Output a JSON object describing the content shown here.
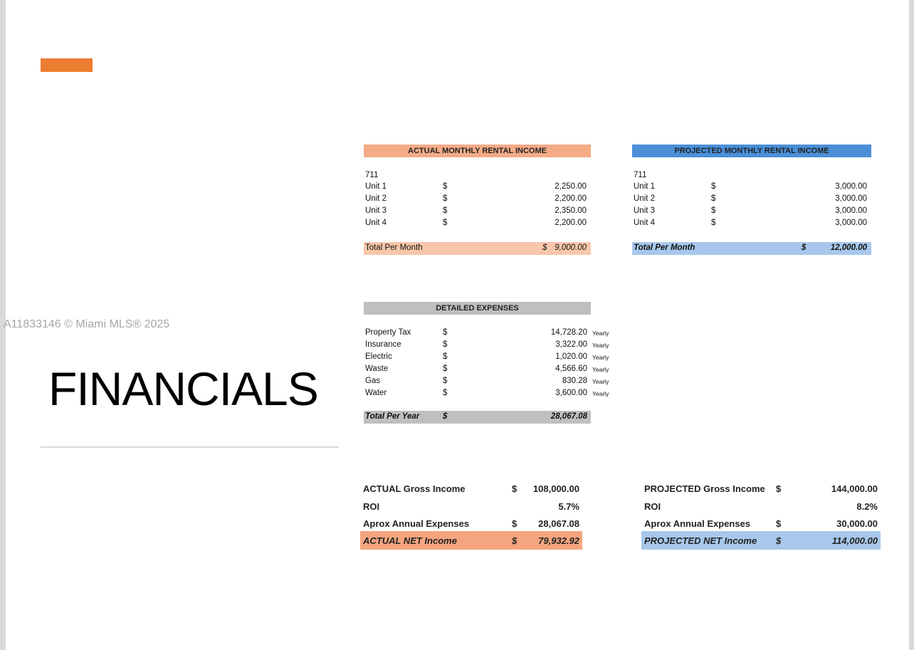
{
  "watermark": "A11833146 © Miami MLS® 2025",
  "title": "FINANCIALS",
  "colors": {
    "accent": "#ED7D31",
    "actual_header": "#F4AB86",
    "actual_total": "#F8C6AA",
    "projected_header": "#4A8FD8",
    "projected_total": "#A7C8EB",
    "expense_header": "#BFBFBF"
  },
  "actual": {
    "header": "ACTUAL MONTHLY RENTAL INCOME",
    "property": "711",
    "rows": [
      {
        "label": "Unit 1",
        "cur": "$",
        "value": "2,250.00"
      },
      {
        "label": "Unit 2",
        "cur": "$",
        "value": "2,200.00"
      },
      {
        "label": "Unit 3",
        "cur": "$",
        "value": "2,350.00"
      },
      {
        "label": "Unit 4",
        "cur": "$",
        "value": "2,200.00"
      }
    ],
    "total": {
      "label": "Total Per Month",
      "cur": "$",
      "value": "9,000.00"
    }
  },
  "projected": {
    "header": "PROJECTED MONTHLY RENTAL INCOME",
    "property": "711",
    "rows": [
      {
        "label": "Unit 1",
        "cur": "$",
        "value": "3,000.00"
      },
      {
        "label": "Unit 2",
        "cur": "$",
        "value": "3,000.00"
      },
      {
        "label": "Unit 3",
        "cur": "$",
        "value": "3,000.00"
      },
      {
        "label": "Unit 4",
        "cur": "$",
        "value": "3,000.00"
      }
    ],
    "total": {
      "label": "Total Per Month",
      "cur": "$",
      "value": "12,000.00"
    }
  },
  "expenses": {
    "header": "DETAILED EXPENSES",
    "rows": [
      {
        "label": "Property Tax",
        "cur": "$",
        "value": "14,728.20",
        "freq": "Yearly"
      },
      {
        "label": "Insurance",
        "cur": "$",
        "value": "3,322.00",
        "freq": "Yearly"
      },
      {
        "label": "Electric",
        "cur": "$",
        "value": "1,020.00",
        "freq": "Yearly"
      },
      {
        "label": "Waste",
        "cur": "$",
        "value": "4,566.60",
        "freq": "Yearly"
      },
      {
        "label": "Gas",
        "cur": "$",
        "value": "830.28",
        "freq": "Yearly"
      },
      {
        "label": "Water",
        "cur": "$",
        "value": "3,600.00",
        "freq": "Yearly"
      }
    ],
    "total": {
      "label": "Total Per Year",
      "cur": "$",
      "value": "28,067.08"
    }
  },
  "summary_actual": {
    "gross": {
      "label": "ACTUAL Gross Income",
      "cur": "$",
      "value": "108,000.00"
    },
    "roi": {
      "label": "ROI",
      "value": "5.7%"
    },
    "expenses": {
      "label": "Aprox Annual Expenses",
      "cur": "$",
      "value": "28,067.08"
    },
    "net": {
      "label": "ACTUAL NET Income",
      "cur": "$",
      "value": "79,932.92"
    }
  },
  "summary_projected": {
    "gross": {
      "label": "PROJECTED Gross Income",
      "cur": "$",
      "value": "144,000.00"
    },
    "roi": {
      "label": "ROI",
      "value": "8.2%"
    },
    "expenses": {
      "label": "Aprox Annual Expenses",
      "cur": "$",
      "value": "30,000.00"
    },
    "net": {
      "label": "PROJECTED NET Income",
      "cur": "$",
      "value": "114,000.00"
    }
  }
}
